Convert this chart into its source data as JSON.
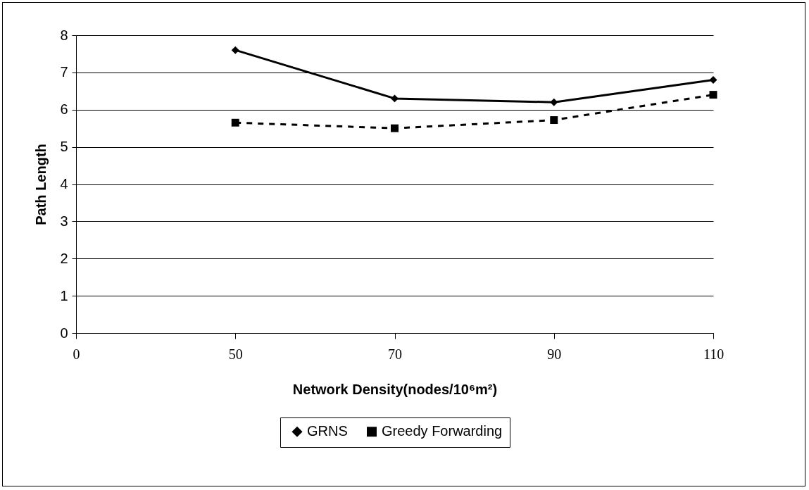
{
  "chart_data": {
    "type": "line",
    "xlabel": "Network Density(nodes/10⁶m²)",
    "ylabel": "Path Length",
    "categories": [
      "0",
      "50",
      "70",
      "90",
      "110"
    ],
    "series": [
      {
        "name": "GRNS",
        "color": "#000000",
        "marker": "diamond",
        "line_style": "solid",
        "values": [
          null,
          7.6,
          6.3,
          6.2,
          6.8
        ]
      },
      {
        "name": "Greedy Forwarding",
        "color": "#000000",
        "marker": "square",
        "line_style": "dashed",
        "values": [
          null,
          5.65,
          5.5,
          5.72,
          6.4
        ]
      }
    ],
    "ylim": [
      0,
      8
    ],
    "yticks": [
      0,
      1,
      2,
      3,
      4,
      5,
      6,
      7,
      8
    ],
    "grid": "y",
    "legend": "bottom"
  }
}
